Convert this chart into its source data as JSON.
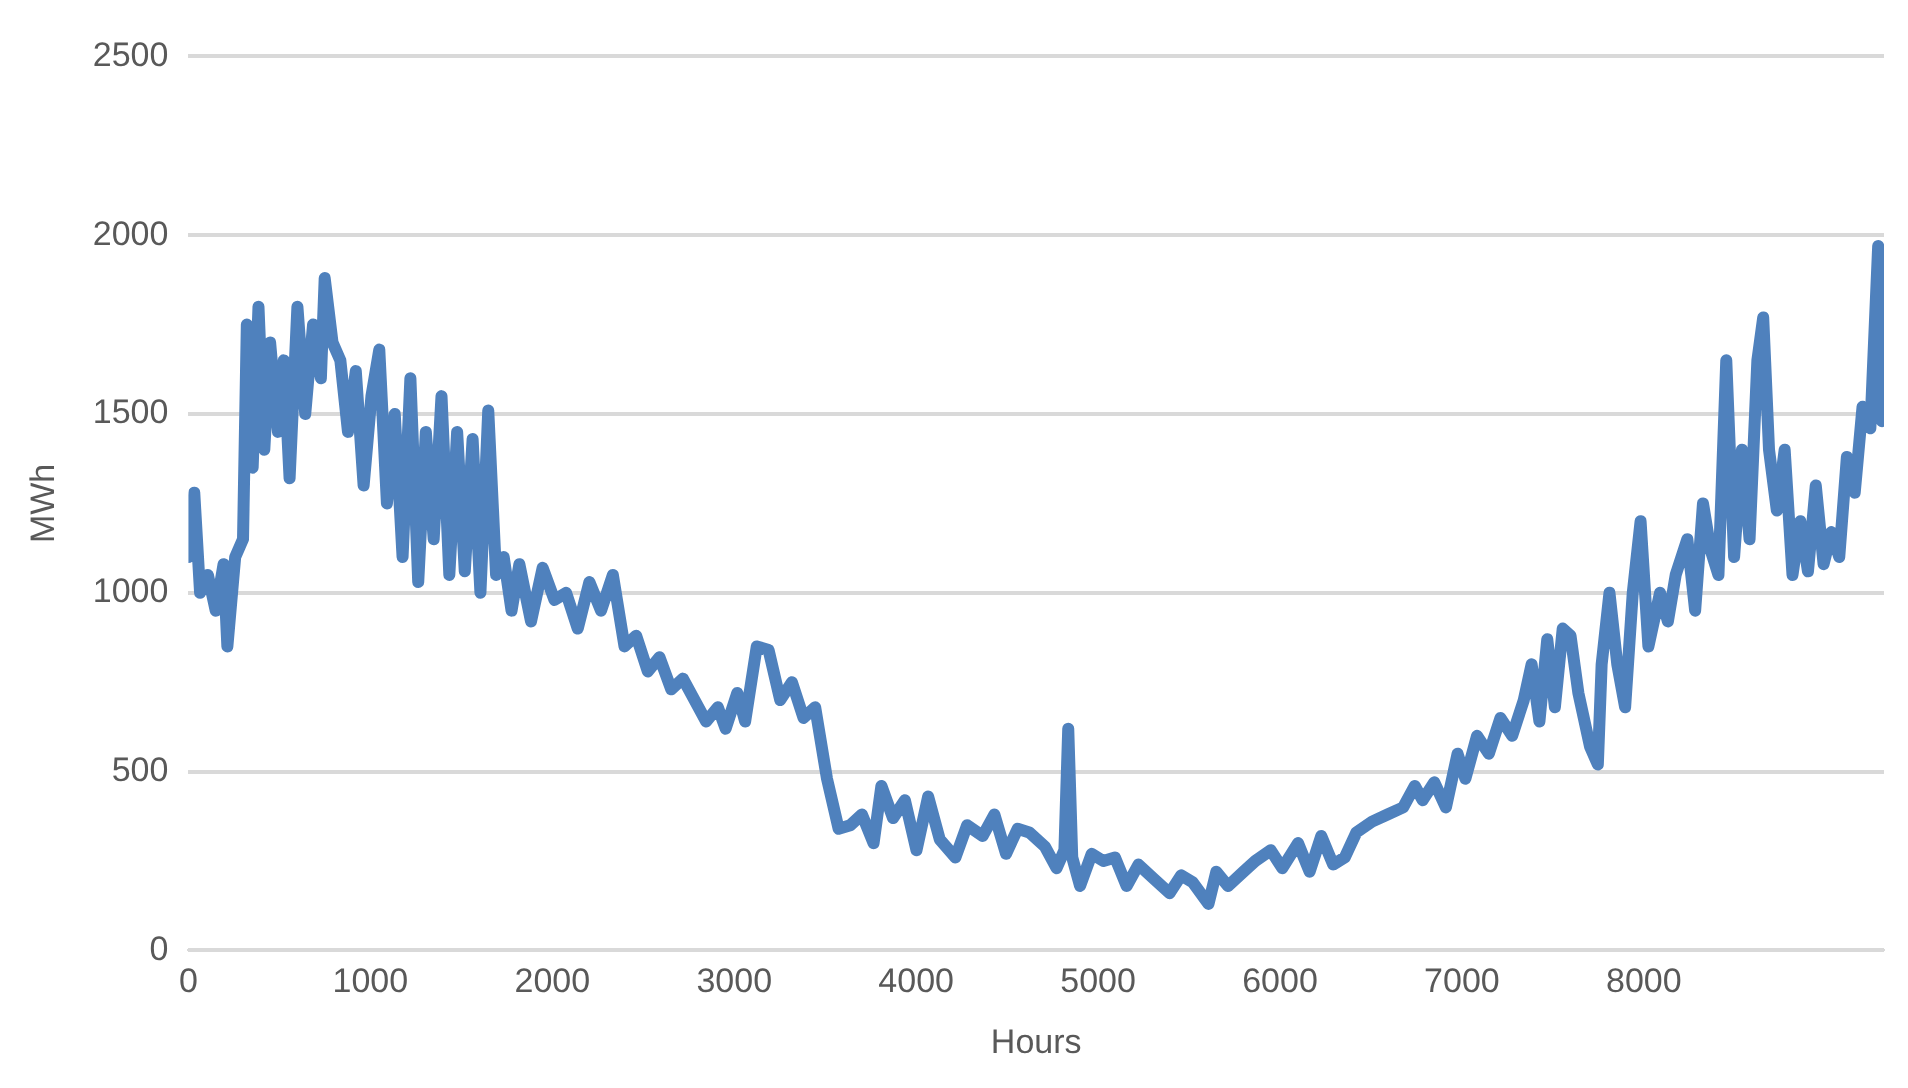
{
  "chart_data": {
    "type": "line",
    "xlabel": "Hours",
    "ylabel": "MWh",
    "xlim": [
      0,
      9320
    ],
    "xticks": [
      0,
      1000,
      2000,
      3000,
      4000,
      5000,
      6000,
      7000,
      8000
    ],
    "ylim": [
      0,
      2500
    ],
    "yticks": [
      0,
      500,
      1000,
      1500,
      2000,
      2500
    ],
    "grid": "y",
    "series": [
      {
        "color": "#4f81bd",
        "x": [
          0,
          32,
          64,
          107,
          150,
          193,
          214,
          257,
          300,
          321,
          353,
          385,
          417,
          449,
          492,
          524,
          556,
          599,
          642,
          685,
          728,
          749,
          792,
          835,
          877,
          920,
          963,
          1006,
          1049,
          1091,
          1134,
          1177,
          1220,
          1263,
          1305,
          1348,
          1391,
          1434,
          1477,
          1519,
          1562,
          1605,
          1648,
          1691,
          1733,
          1776,
          1819,
          1883,
          1947,
          2012,
          2076,
          2140,
          2204,
          2268,
          2333,
          2397,
          2461,
          2525,
          2589,
          2654,
          2718,
          2782,
          2846,
          2910,
          2953,
          3017,
          3060,
          3124,
          3189,
          3253,
          3317,
          3381,
          3445,
          3510,
          3574,
          3638,
          3702,
          3766,
          3809,
          3873,
          3938,
          4002,
          4066,
          4130,
          4216,
          4280,
          4366,
          4430,
          4494,
          4558,
          4622,
          4708,
          4772,
          4815,
          4836,
          4858,
          4901,
          4965,
          5029,
          5093,
          5157,
          5222,
          5307,
          5393,
          5457,
          5521,
          5607,
          5650,
          5714,
          5799,
          5864,
          5949,
          6013,
          6099,
          6163,
          6227,
          6292,
          6356,
          6420,
          6506,
          6591,
          6677,
          6741,
          6784,
          6848,
          6912,
          6976,
          7019,
          7083,
          7148,
          7212,
          7276,
          7340,
          7383,
          7426,
          7469,
          7511,
          7554,
          7597,
          7640,
          7704,
          7747,
          7768,
          7811,
          7854,
          7897,
          7939,
          7982,
          8025,
          8089,
          8132,
          8175,
          8239,
          8282,
          8325,
          8367,
          8410,
          8453,
          8496,
          8539,
          8581,
          8624,
          8656,
          8688,
          8731,
          8774,
          8817,
          8860,
          8902,
          8945,
          8988,
          9031,
          9074,
          9116,
          9159,
          9202,
          9245,
          9288,
          9309
        ],
        "values": [
          1100,
          1280,
          1000,
          1050,
          950,
          1080,
          850,
          1100,
          1150,
          1750,
          1350,
          1800,
          1400,
          1700,
          1450,
          1650,
          1320,
          1800,
          1500,
          1750,
          1600,
          1880,
          1700,
          1650,
          1450,
          1620,
          1300,
          1550,
          1680,
          1250,
          1500,
          1100,
          1600,
          1030,
          1450,
          1150,
          1550,
          1050,
          1450,
          1060,
          1430,
          1000,
          1510,
          1050,
          1100,
          950,
          1080,
          920,
          1070,
          980,
          1000,
          900,
          1030,
          950,
          1050,
          850,
          880,
          780,
          820,
          730,
          760,
          700,
          640,
          680,
          620,
          720,
          640,
          850,
          840,
          700,
          750,
          650,
          680,
          480,
          340,
          350,
          380,
          300,
          460,
          370,
          420,
          280,
          430,
          310,
          260,
          350,
          320,
          380,
          270,
          340,
          330,
          290,
          230,
          280,
          620,
          260,
          180,
          270,
          250,
          260,
          180,
          240,
          200,
          160,
          210,
          190,
          130,
          220,
          180,
          220,
          250,
          280,
          230,
          300,
          220,
          320,
          240,
          260,
          330,
          360,
          380,
          400,
          460,
          420,
          470,
          400,
          550,
          480,
          600,
          550,
          650,
          600,
          700,
          800,
          640,
          870,
          680,
          900,
          880,
          720,
          570,
          520,
          800,
          1000,
          800,
          680,
          1000,
          1200,
          850,
          1000,
          920,
          1050,
          1150,
          950,
          1250,
          1120,
          1050,
          1650,
          1100,
          1400,
          1150,
          1650,
          1770,
          1400,
          1230,
          1400,
          1050,
          1200,
          1060,
          1300,
          1080,
          1170,
          1100,
          1380,
          1280,
          1520,
          1460,
          1970,
          1480
        ]
      }
    ]
  }
}
